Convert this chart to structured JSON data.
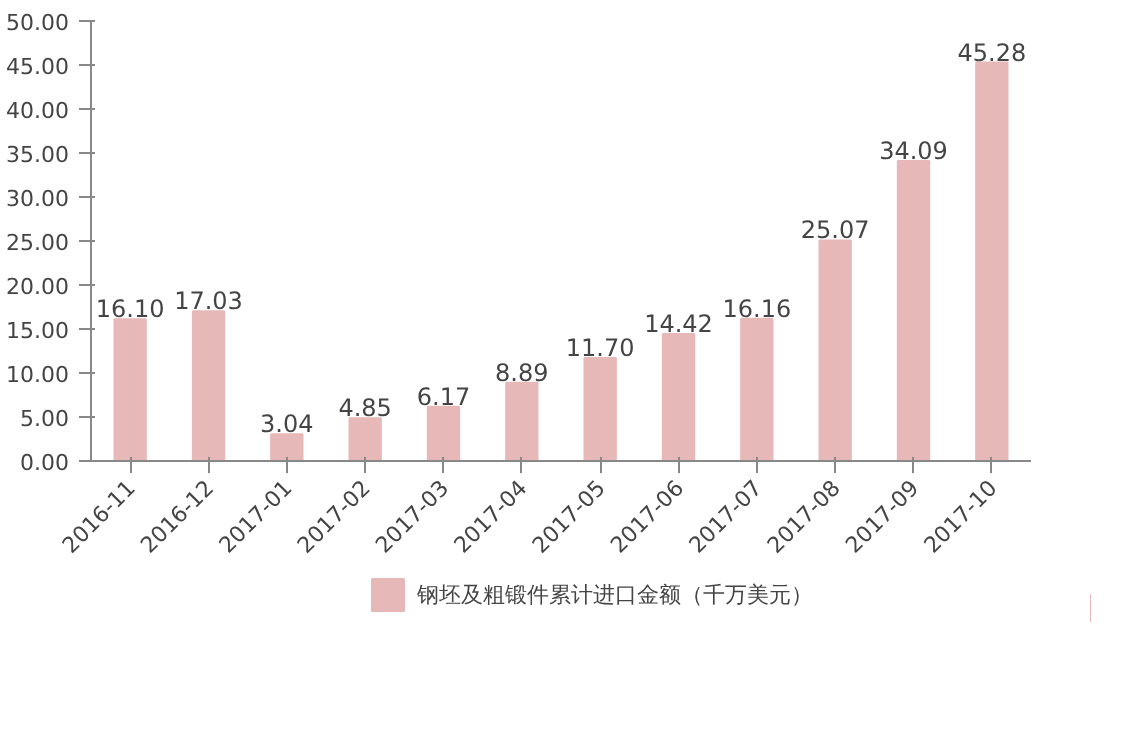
{
  "chart_data": {
    "type": "bar",
    "categories": [
      "2016-11",
      "2016-12",
      "2017-01",
      "2017-02",
      "2017-03",
      "2017-04",
      "2017-05",
      "2017-06",
      "2017-07",
      "2017-08",
      "2017-09",
      "2017-10"
    ],
    "series": [
      {
        "name": "钢坯及粗锻件累计进口金额（千万美元）",
        "color": "#e6b8b7",
        "values": [
          16.1,
          17.03,
          3.04,
          4.85,
          6.17,
          8.89,
          11.7,
          14.42,
          16.16,
          25.07,
          34.09,
          45.28
        ],
        "value_labels": [
          "16.10",
          "17.03",
          "3.04",
          "4.85",
          "6.17",
          "8.89",
          "11.70",
          "14.42",
          "16.16",
          "25.07",
          "34.09",
          "45.28"
        ]
      }
    ],
    "ylim": [
      0,
      50
    ],
    "yticks": [
      {
        "value": 0,
        "label": "0.00"
      },
      {
        "value": 5,
        "label": "5.00"
      },
      {
        "value": 10,
        "label": "10.00"
      },
      {
        "value": 15,
        "label": "15.00"
      },
      {
        "value": 20,
        "label": "20.00"
      },
      {
        "value": 25,
        "label": "25.00"
      },
      {
        "value": 30,
        "label": "30.00"
      },
      {
        "value": 35,
        "label": "35.00"
      },
      {
        "value": 40,
        "label": "40.00"
      },
      {
        "value": 45,
        "label": "45.00"
      },
      {
        "value": 50,
        "label": "50.00"
      }
    ],
    "grid": false,
    "legend": "bottom"
  }
}
